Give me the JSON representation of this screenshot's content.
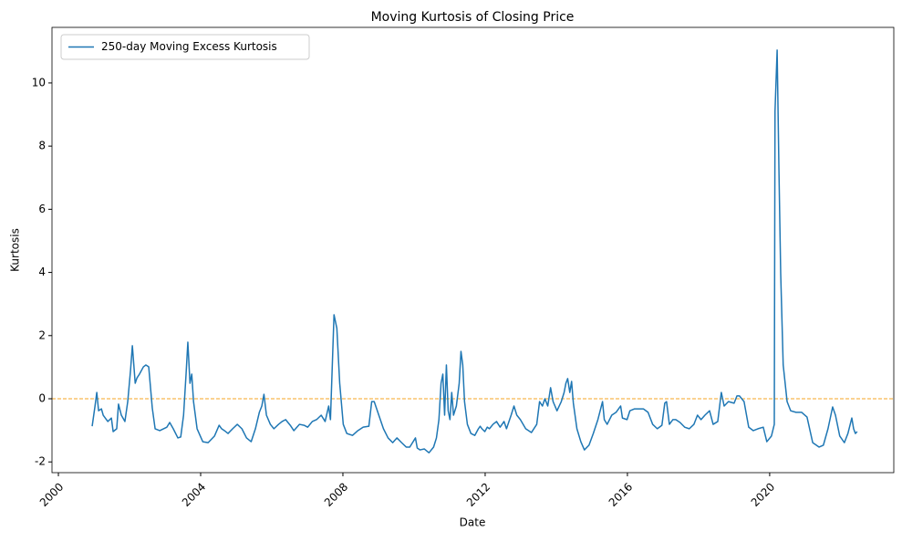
{
  "chart_data": {
    "type": "line",
    "title": "Moving Kurtosis of Closing Price",
    "xlabel": "Date",
    "ylabel": "Kurtosis",
    "x": [
      2000.95,
      2001.03,
      2001.08,
      2001.13,
      2001.21,
      2001.26,
      2001.39,
      2001.49,
      2001.54,
      2001.64,
      2001.69,
      2001.77,
      2001.87,
      2001.95,
      2002.03,
      2002.08,
      2002.16,
      2002.21,
      2002.28,
      2002.39,
      2002.46,
      2002.54,
      2002.64,
      2002.72,
      2002.85,
      2003.05,
      2003.13,
      2003.23,
      2003.36,
      2003.44,
      2003.52,
      2003.59,
      2003.64,
      2003.7,
      2003.75,
      2003.8,
      2003.9,
      2004.06,
      2004.21,
      2004.39,
      2004.52,
      2004.59,
      2004.67,
      2004.77,
      2004.9,
      2005.03,
      2005.16,
      2005.29,
      2005.42,
      2005.54,
      2005.65,
      2005.72,
      2005.78,
      2005.85,
      2005.96,
      2006.06,
      2006.19,
      2006.29,
      2006.39,
      2006.52,
      2006.62,
      2006.78,
      2006.91,
      2007.01,
      2007.14,
      2007.26,
      2007.39,
      2007.5,
      2007.6,
      2007.65,
      2007.75,
      2007.83,
      2007.91,
      2008.01,
      2008.11,
      2008.27,
      2008.42,
      2008.57,
      2008.73,
      2008.81,
      2008.88,
      2009.01,
      2009.14,
      2009.27,
      2009.4,
      2009.52,
      2009.65,
      2009.78,
      2009.88,
      2010.04,
      2010.09,
      2010.17,
      2010.29,
      2010.42,
      2010.55,
      2010.63,
      2010.7,
      2010.76,
      2010.81,
      2010.86,
      2010.91,
      2010.96,
      2011.01,
      2011.06,
      2011.11,
      2011.19,
      2011.27,
      2011.32,
      2011.37,
      2011.42,
      2011.5,
      2011.6,
      2011.71,
      2011.81,
      2011.86,
      2011.91,
      2011.99,
      2012.06,
      2012.12,
      2012.22,
      2012.32,
      2012.42,
      2012.53,
      2012.6,
      2012.73,
      2012.81,
      2012.89,
      2012.99,
      2013.14,
      2013.3,
      2013.45,
      2013.53,
      2013.61,
      2013.68,
      2013.76,
      2013.84,
      2013.91,
      2014.02,
      2014.14,
      2014.22,
      2014.27,
      2014.32,
      2014.38,
      2014.43,
      2014.48,
      2014.58,
      2014.69,
      2014.79,
      2014.92,
      2015.04,
      2015.17,
      2015.3,
      2015.35,
      2015.43,
      2015.56,
      2015.68,
      2015.81,
      2015.86,
      2015.99,
      2016.07,
      2016.2,
      2016.33,
      2016.45,
      2016.58,
      2016.71,
      2016.84,
      2016.97,
      2017.05,
      2017.1,
      2017.18,
      2017.28,
      2017.36,
      2017.48,
      2017.61,
      2017.74,
      2017.87,
      2017.97,
      2018.07,
      2018.18,
      2018.31,
      2018.41,
      2018.54,
      2018.64,
      2018.72,
      2018.84,
      2019.0,
      2019.08,
      2019.15,
      2019.28,
      2019.41,
      2019.54,
      2019.67,
      2019.82,
      2019.92,
      2020.05,
      2020.13,
      2020.15,
      2020.21,
      2020.26,
      2020.31,
      2020.38,
      2020.49,
      2020.59,
      2020.74,
      2020.9,
      2021.05,
      2021.21,
      2021.39,
      2021.51,
      2021.64,
      2021.77,
      2021.85,
      2021.97,
      2022.1,
      2022.2,
      2022.31,
      2022.36,
      2022.41,
      2022.46
    ],
    "series": [
      {
        "name": "250-day Moving Excess Kurtosis",
        "color": "#1f77b4",
        "values": [
          -0.87,
          -0.23,
          0.2,
          -0.38,
          -0.32,
          -0.52,
          -0.72,
          -0.61,
          -1.04,
          -0.95,
          -0.17,
          -0.52,
          -0.72,
          -0.09,
          0.92,
          1.68,
          0.49,
          0.66,
          0.78,
          1.01,
          1.07,
          1.01,
          -0.29,
          -0.95,
          -1.01,
          -0.9,
          -0.75,
          -0.95,
          -1.24,
          -1.21,
          -0.52,
          0.78,
          1.79,
          0.49,
          0.78,
          -0.09,
          -0.95,
          -1.36,
          -1.39,
          -1.18,
          -0.84,
          -0.95,
          -1.01,
          -1.1,
          -0.95,
          -0.81,
          -0.95,
          -1.24,
          -1.36,
          -0.95,
          -0.43,
          -0.23,
          0.14,
          -0.52,
          -0.81,
          -0.95,
          -0.81,
          -0.72,
          -0.66,
          -0.84,
          -1.01,
          -0.81,
          -0.84,
          -0.9,
          -0.72,
          -0.66,
          -0.52,
          -0.72,
          -0.23,
          -0.66,
          2.66,
          2.23,
          0.49,
          -0.81,
          -1.1,
          -1.16,
          -1.01,
          -0.9,
          -0.87,
          -0.09,
          -0.09,
          -0.52,
          -0.95,
          -1.24,
          -1.39,
          -1.24,
          -1.39,
          -1.53,
          -1.53,
          -1.24,
          -1.56,
          -1.62,
          -1.59,
          -1.71,
          -1.53,
          -1.24,
          -0.66,
          0.49,
          0.78,
          -0.52,
          1.07,
          -0.38,
          -0.66,
          0.2,
          -0.52,
          -0.23,
          0.49,
          1.5,
          1.07,
          -0.09,
          -0.81,
          -1.1,
          -1.16,
          -0.95,
          -0.87,
          -0.95,
          -1.04,
          -0.9,
          -0.95,
          -0.81,
          -0.72,
          -0.9,
          -0.72,
          -0.95,
          -0.52,
          -0.23,
          -0.52,
          -0.66,
          -0.95,
          -1.07,
          -0.81,
          -0.09,
          -0.23,
          0.0,
          -0.23,
          0.35,
          -0.09,
          -0.38,
          -0.09,
          0.2,
          0.49,
          0.64,
          0.2,
          0.55,
          -0.14,
          -0.95,
          -1.36,
          -1.62,
          -1.47,
          -1.1,
          -0.66,
          -0.09,
          -0.66,
          -0.81,
          -0.52,
          -0.43,
          -0.23,
          -0.61,
          -0.66,
          -0.38,
          -0.32,
          -0.32,
          -0.32,
          -0.43,
          -0.81,
          -0.95,
          -0.84,
          -0.14,
          -0.09,
          -0.81,
          -0.66,
          -0.66,
          -0.75,
          -0.9,
          -0.95,
          -0.81,
          -0.52,
          -0.66,
          -0.52,
          -0.38,
          -0.81,
          -0.72,
          0.2,
          -0.23,
          -0.09,
          -0.14,
          0.09,
          0.09,
          -0.09,
          -0.9,
          -1.01,
          -0.95,
          -0.9,
          -1.36,
          -1.18,
          -0.81,
          9.1,
          11.04,
          7.28,
          3.96,
          1.07,
          -0.09,
          -0.38,
          -0.43,
          -0.43,
          -0.58,
          -1.39,
          -1.53,
          -1.47,
          -0.95,
          -0.26,
          -0.52,
          -1.18,
          -1.39,
          -1.1,
          -0.61,
          -0.95,
          -1.1,
          -1.04
        ]
      }
    ],
    "xlim": [
      1999.82,
      2023.49
    ],
    "ylim": [
      -2.34,
      11.76
    ],
    "xticks": [
      2000,
      2004,
      2008,
      2012,
      2016,
      2020
    ],
    "yticks": [
      -2,
      0,
      2,
      4,
      6,
      8,
      10
    ],
    "hline": 0,
    "hline_color": "#f5a623",
    "legend": "upper-left"
  }
}
